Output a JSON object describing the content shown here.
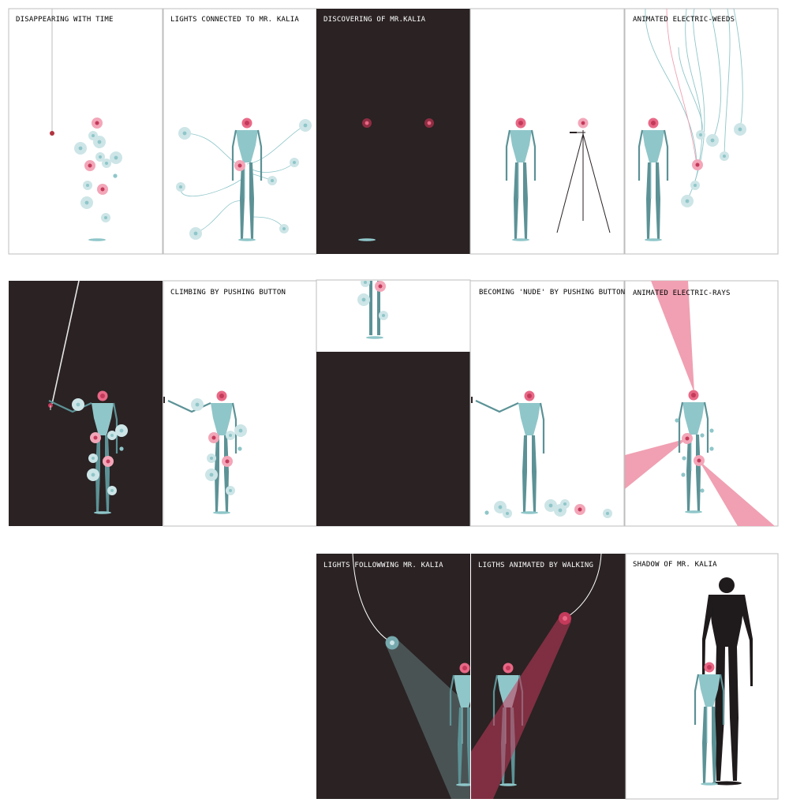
{
  "colors": {
    "dark": "#2a2223",
    "teal": "#8fc6c9",
    "teal_dark": "#5c9296",
    "pink": "#e86886",
    "pink_dark": "#c43a5b",
    "light_circle": "#cde5e7",
    "frame": "#bdbdbd",
    "shadow_black": "#1f1a1b",
    "ray_pink": "#f0a0b2"
  },
  "panels": [
    {
      "title": "DISAPPEARING WITH TIME"
    },
    {
      "title": "LIGHTS CONNECTED TO MR. KALIA"
    },
    {
      "title": "DISCOVERING OF MR.KALIA"
    },
    {
      "title": ""
    },
    {
      "title": "ANIMATED ELECTRIC-WEEDS"
    },
    {
      "title": ""
    },
    {
      "title": "CLIMBING BY PUSHING BUTTON"
    },
    {
      "title": ""
    },
    {
      "title": "BECOMING 'NUDE' BY PUSHING BUTTON"
    },
    {
      "title": "ANIMATED ELECTRIC-RAYS"
    },
    {
      "title": "LIGHTS FOLLOWWING MR. KALIA"
    },
    {
      "title": "LIGTHS ANIMATED BY WALKING"
    },
    {
      "title": "SHADOW OF MR. KALIA"
    }
  ]
}
